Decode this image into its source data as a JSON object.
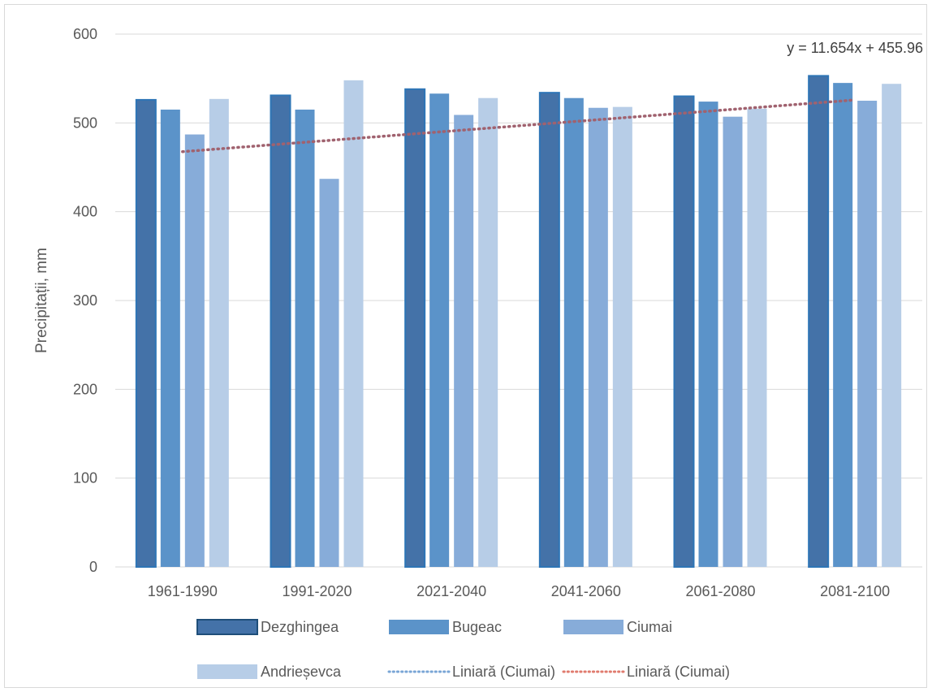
{
  "chart_data": {
    "type": "bar",
    "ylabel": "Precipitații, mm",
    "ylim": [
      0,
      600
    ],
    "yticks": [
      0,
      100,
      200,
      300,
      400,
      500,
      600
    ],
    "grid": true,
    "legend_position": "bottom",
    "categories": [
      "1961-1990",
      "1991-2020",
      "2021-2040",
      "2041-2060",
      "2061-2080",
      "2081-2100"
    ],
    "series": [
      {
        "name": "Dezghingea",
        "values": [
          526,
          531,
          538,
          534,
          530,
          553
        ],
        "color": "#4472a8"
      },
      {
        "name": "Bugeac",
        "values": [
          515,
          515,
          533,
          528,
          524,
          545
        ],
        "color": "#5b93c9"
      },
      {
        "name": "Ciumai",
        "values": [
          487,
          437,
          509,
          517,
          507,
          525
        ],
        "color": "#87acd9"
      },
      {
        "name": "Andrieșevca",
        "values": [
          527,
          548,
          528,
          518,
          516,
          544
        ],
        "color": "#b7cde7"
      }
    ],
    "trendlines": [
      {
        "legend": "Liniară (Ciumai)",
        "color": "#7aa6d6",
        "style": "dotted",
        "drawn": false
      },
      {
        "legend": "Liniară (Ciumai)",
        "color": "#e07b6e",
        "style": "dotted",
        "drawn": true,
        "line_color": "#a0626f",
        "slope": 11.654,
        "intercept": 455.96
      }
    ],
    "trend_equation": "y = 11.654x + 455.96"
  }
}
